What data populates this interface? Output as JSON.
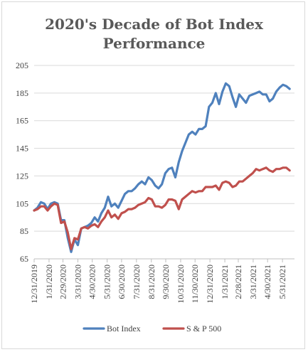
{
  "chart_data": {
    "type": "line",
    "title_line1": "2020's Decade of Bot Index",
    "title_line2": "Performance",
    "xlabel": "",
    "ylabel": "",
    "ylim": [
      65,
      205
    ],
    "y_ticks": [
      65,
      85,
      105,
      125,
      145,
      165,
      185,
      205
    ],
    "x_tick_labels": [
      "12/31/2019",
      "1/31/2020",
      "2/29/2020",
      "3/31/2020",
      "4/30/2020",
      "5/31/2020",
      "6/30/2020",
      "7/31/2020",
      "8/31/2020",
      "9/30/2020",
      "10/31/2020",
      "11/30/2020",
      "12/31/2020",
      "1/31/2021",
      "2/28/2021",
      "3/31/2021",
      "4/30/2021",
      "5/31/2021"
    ],
    "x_start": "2019-12-31",
    "x_end": "2021-06-25",
    "grid": "horizontal",
    "legend_position": "bottom",
    "series": [
      {
        "name": "Bot Index",
        "color": "#4f81bd",
        "points": [
          [
            "2019-12-31",
            100
          ],
          [
            "2020-01-07",
            102
          ],
          [
            "2020-01-14",
            106
          ],
          [
            "2020-01-21",
            105
          ],
          [
            "2020-01-28",
            101
          ],
          [
            "2020-02-04",
            105
          ],
          [
            "2020-02-11",
            106
          ],
          [
            "2020-02-18",
            105
          ],
          [
            "2020-02-25",
            93
          ],
          [
            "2020-03-03",
            93
          ],
          [
            "2020-03-10",
            80
          ],
          [
            "2020-03-17",
            70
          ],
          [
            "2020-03-24",
            79
          ],
          [
            "2020-03-31",
            75
          ],
          [
            "2020-04-07",
            87
          ],
          [
            "2020-04-14",
            88
          ],
          [
            "2020-04-21",
            89
          ],
          [
            "2020-04-28",
            91
          ],
          [
            "2020-05-05",
            95
          ],
          [
            "2020-05-12",
            92
          ],
          [
            "2020-05-19",
            98
          ],
          [
            "2020-05-26",
            102
          ],
          [
            "2020-06-02",
            110
          ],
          [
            "2020-06-09",
            103
          ],
          [
            "2020-06-16",
            105
          ],
          [
            "2020-06-23",
            102
          ],
          [
            "2020-06-30",
            107
          ],
          [
            "2020-07-07",
            112
          ],
          [
            "2020-07-14",
            114
          ],
          [
            "2020-07-21",
            114
          ],
          [
            "2020-07-28",
            116
          ],
          [
            "2020-08-04",
            119
          ],
          [
            "2020-08-11",
            121
          ],
          [
            "2020-08-18",
            119
          ],
          [
            "2020-08-25",
            124
          ],
          [
            "2020-09-01",
            122
          ],
          [
            "2020-09-08",
            118
          ],
          [
            "2020-09-15",
            116
          ],
          [
            "2020-09-22",
            119
          ],
          [
            "2020-09-29",
            127
          ],
          [
            "2020-10-06",
            130
          ],
          [
            "2020-10-13",
            131
          ],
          [
            "2020-10-20",
            124
          ],
          [
            "2020-10-27",
            135
          ],
          [
            "2020-11-03",
            143
          ],
          [
            "2020-11-10",
            149
          ],
          [
            "2020-11-17",
            155
          ],
          [
            "2020-11-24",
            157
          ],
          [
            "2020-12-01",
            155
          ],
          [
            "2020-12-08",
            159
          ],
          [
            "2020-12-15",
            159
          ],
          [
            "2020-12-22",
            161
          ],
          [
            "2020-12-29",
            175
          ],
          [
            "2021-01-05",
            178
          ],
          [
            "2021-01-12",
            185
          ],
          [
            "2021-01-19",
            177
          ],
          [
            "2021-01-26",
            186
          ],
          [
            "2021-02-02",
            192
          ],
          [
            "2021-02-09",
            190
          ],
          [
            "2021-02-16",
            182
          ],
          [
            "2021-02-23",
            175
          ],
          [
            "2021-03-02",
            184
          ],
          [
            "2021-03-09",
            181
          ],
          [
            "2021-03-16",
            178
          ],
          [
            "2021-03-23",
            183
          ],
          [
            "2021-03-30",
            184
          ],
          [
            "2021-04-06",
            185
          ],
          [
            "2021-04-13",
            186
          ],
          [
            "2021-04-20",
            184
          ],
          [
            "2021-04-27",
            184
          ],
          [
            "2021-05-04",
            179
          ],
          [
            "2021-05-11",
            181
          ],
          [
            "2021-05-18",
            186
          ],
          [
            "2021-05-25",
            189
          ],
          [
            "2021-06-01",
            191
          ],
          [
            "2021-06-08",
            190
          ],
          [
            "2021-06-15",
            188
          ]
        ]
      },
      {
        "name": "S & P 500",
        "color": "#c0504d",
        "points": [
          [
            "2019-12-31",
            100
          ],
          [
            "2020-01-07",
            101
          ],
          [
            "2020-01-14",
            103
          ],
          [
            "2020-01-21",
            103
          ],
          [
            "2020-01-28",
            100
          ],
          [
            "2020-02-04",
            103
          ],
          [
            "2020-02-11",
            105
          ],
          [
            "2020-02-18",
            104
          ],
          [
            "2020-02-25",
            91
          ],
          [
            "2020-03-03",
            92
          ],
          [
            "2020-03-10",
            84
          ],
          [
            "2020-03-17",
            72
          ],
          [
            "2020-03-24",
            80
          ],
          [
            "2020-03-31",
            79
          ],
          [
            "2020-04-07",
            87
          ],
          [
            "2020-04-14",
            88
          ],
          [
            "2020-04-21",
            87
          ],
          [
            "2020-04-28",
            89
          ],
          [
            "2020-05-05",
            90
          ],
          [
            "2020-05-12",
            88
          ],
          [
            "2020-05-19",
            92
          ],
          [
            "2020-05-26",
            95
          ],
          [
            "2020-06-02",
            100
          ],
          [
            "2020-06-09",
            95
          ],
          [
            "2020-06-16",
            97
          ],
          [
            "2020-06-23",
            94
          ],
          [
            "2020-06-30",
            98
          ],
          [
            "2020-07-07",
            99
          ],
          [
            "2020-07-14",
            101
          ],
          [
            "2020-07-21",
            101
          ],
          [
            "2020-07-28",
            102
          ],
          [
            "2020-08-04",
            104
          ],
          [
            "2020-08-11",
            105
          ],
          [
            "2020-08-18",
            106
          ],
          [
            "2020-08-25",
            109
          ],
          [
            "2020-09-01",
            108
          ],
          [
            "2020-09-08",
            103
          ],
          [
            "2020-09-15",
            103
          ],
          [
            "2020-09-22",
            102
          ],
          [
            "2020-09-29",
            104
          ],
          [
            "2020-10-06",
            108
          ],
          [
            "2020-10-13",
            108
          ],
          [
            "2020-10-20",
            107
          ],
          [
            "2020-10-27",
            101
          ],
          [
            "2020-11-03",
            108
          ],
          [
            "2020-11-10",
            110
          ],
          [
            "2020-11-17",
            112
          ],
          [
            "2020-11-24",
            114
          ],
          [
            "2020-12-01",
            113
          ],
          [
            "2020-12-08",
            114
          ],
          [
            "2020-12-15",
            114
          ],
          [
            "2020-12-22",
            117
          ],
          [
            "2020-12-29",
            117
          ],
          [
            "2021-01-05",
            117
          ],
          [
            "2021-01-12",
            118
          ],
          [
            "2021-01-19",
            115
          ],
          [
            "2021-01-26",
            120
          ],
          [
            "2021-02-02",
            121
          ],
          [
            "2021-02-09",
            120
          ],
          [
            "2021-02-16",
            117
          ],
          [
            "2021-02-23",
            118
          ],
          [
            "2021-03-02",
            121
          ],
          [
            "2021-03-09",
            121
          ],
          [
            "2021-03-16",
            123
          ],
          [
            "2021-03-23",
            125
          ],
          [
            "2021-03-30",
            127
          ],
          [
            "2021-04-06",
            130
          ],
          [
            "2021-04-13",
            129
          ],
          [
            "2021-04-20",
            130
          ],
          [
            "2021-04-27",
            131
          ],
          [
            "2021-05-04",
            129
          ],
          [
            "2021-05-11",
            128
          ],
          [
            "2021-05-18",
            130
          ],
          [
            "2021-05-25",
            130
          ],
          [
            "2021-06-01",
            131
          ],
          [
            "2021-06-08",
            131
          ],
          [
            "2021-06-15",
            129
          ]
        ]
      }
    ]
  }
}
